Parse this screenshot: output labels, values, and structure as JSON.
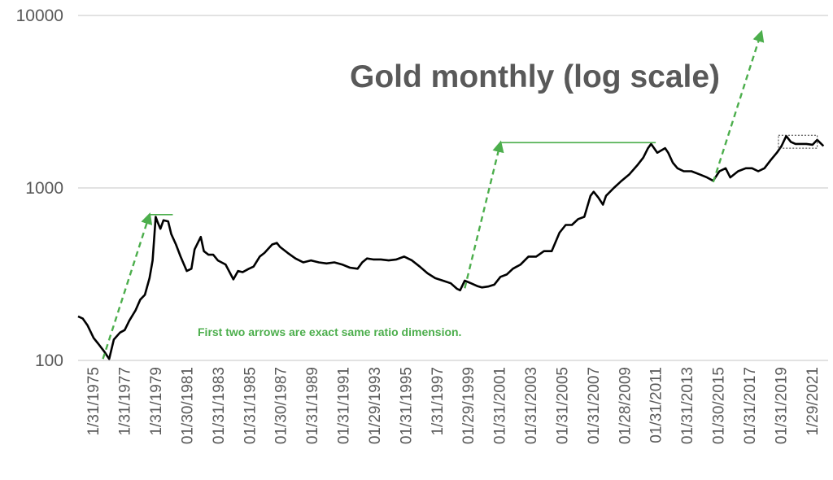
{
  "chart_data": {
    "type": "line",
    "title": "Gold monthly (log scale)",
    "xlabel": "",
    "ylabel": "",
    "y_scale": "log",
    "ylim": [
      100,
      10000
    ],
    "y_ticks": [
      "100",
      "1000",
      "10000"
    ],
    "x_ticks": [
      "1/31/1975",
      "1/31/1977",
      "1/31/1979",
      "01/30/1981",
      "01/31/1983",
      "01/31/1985",
      "01/30/1987",
      "01/31/1989",
      "01/31/1991",
      "01/29/1993",
      "01/31/1995",
      "1/31/1997",
      "01/29/1999",
      "01/31/2001",
      "01/31/2003",
      "01/31/2005",
      "01/31/2007",
      "01/28/2009",
      "01/31/2011",
      "01/31/2013",
      "01/30/2015",
      "01/31/2017",
      "01/31/2019",
      "1/29/2021"
    ],
    "grid": true,
    "legend": "none",
    "line_color": "#000000",
    "annotation_color": "#4cae4c",
    "series": [
      {
        "x": [
          1975.0,
          1975.3,
          1975.6,
          1976.0,
          1976.3,
          1976.7,
          1977.0,
          1977.3,
          1977.7,
          1978.0,
          1978.3,
          1978.7,
          1979.0,
          1979.3,
          1979.6,
          1979.8,
          1980.0,
          1980.1,
          1980.3,
          1980.5,
          1980.8,
          1981.0,
          1981.3,
          1981.6,
          1982.0,
          1982.3,
          1982.5,
          1982.9,
          1983.1,
          1983.4,
          1983.7,
          1984.0,
          1984.5,
          1985.0,
          1985.3,
          1985.6,
          1986.0,
          1986.3,
          1986.7,
          1987.0,
          1987.5,
          1987.8,
          1988.0,
          1988.5,
          1989.0,
          1989.5,
          1990.0,
          1990.5,
          1991.0,
          1991.5,
          1992.0,
          1992.5,
          1993.0,
          1993.3,
          1993.6,
          1994.0,
          1994.5,
          1995.0,
          1995.5,
          1996.0,
          1996.5,
          1997.0,
          1997.5,
          1998.0,
          1998.5,
          1999.0,
          1999.4,
          1999.6,
          1999.9,
          2000.3,
          2000.7,
          2001.0,
          2001.4,
          2001.8,
          2002.2,
          2002.6,
          2003.0,
          2003.5,
          2004.0,
          2004.5,
          2005.0,
          2005.5,
          2006.0,
          2006.4,
          2006.8,
          2007.2,
          2007.6,
          2008.0,
          2008.2,
          2008.5,
          2008.8,
          2009.0,
          2009.5,
          2010.0,
          2010.5,
          2011.0,
          2011.4,
          2011.7,
          2011.9,
          2012.3,
          2012.8,
          2013.0,
          2013.3,
          2013.6,
          2014.0,
          2014.5,
          2015.0,
          2015.5,
          2015.9,
          2016.3,
          2016.7,
          2017.0,
          2017.5,
          2018.0,
          2018.4,
          2018.8,
          2019.2,
          2019.6,
          2020.0,
          2020.3,
          2020.6,
          2020.9,
          2021.2,
          2021.5,
          2021.9,
          2022.3,
          2022.6,
          2023.0
        ],
        "y": [
          180,
          175,
          160,
          135,
          125,
          112,
          102,
          132,
          145,
          150,
          170,
          195,
          225,
          240,
          300,
          380,
          680,
          640,
          580,
          650,
          640,
          540,
          470,
          400,
          330,
          340,
          440,
          520,
          430,
          410,
          410,
          380,
          360,
          295,
          330,
          325,
          340,
          350,
          400,
          420,
          470,
          480,
          455,
          420,
          390,
          370,
          380,
          370,
          365,
          370,
          360,
          345,
          340,
          370,
          390,
          385,
          385,
          380,
          385,
          400,
          380,
          350,
          320,
          300,
          290,
          280,
          260,
          255,
          290,
          280,
          270,
          265,
          268,
          275,
          305,
          315,
          340,
          360,
          400,
          400,
          430,
          430,
          550,
          610,
          610,
          660,
          680,
          900,
          950,
          880,
          800,
          900,
          1000,
          1100,
          1200,
          1350,
          1500,
          1700,
          1800,
          1600,
          1700,
          1600,
          1400,
          1300,
          1250,
          1250,
          1200,
          1150,
          1100,
          1250,
          1300,
          1150,
          1250,
          1300,
          1300,
          1250,
          1300,
          1450,
          1600,
          1750,
          2000,
          1850,
          1800,
          1800,
          1800,
          1780,
          1900,
          1750
        ]
      }
    ],
    "annotations": {
      "note_text": "First two arrows are exact same ratio dimension.",
      "arrows": [
        {
          "from": [
            1976.6,
            102
          ],
          "to": [
            1979.6,
            700
          ]
        },
        {
          "from": [
            1999.9,
            262
          ],
          "to": [
            2002.2,
            1830
          ]
        },
        {
          "from": [
            2015.9,
            1080
          ],
          "to": [
            2019.0,
            8000
          ]
        }
      ],
      "levels": [
        {
          "x1": 1979.6,
          "x2": 1981.1,
          "y": 700
        },
        {
          "x1": 2002.2,
          "x2": 2012.2,
          "y": 1830
        }
      ],
      "highlight_box": {
        "x1": 2020.1,
        "x2": 2022.6,
        "y1": 1700,
        "y2": 2020
      }
    }
  }
}
